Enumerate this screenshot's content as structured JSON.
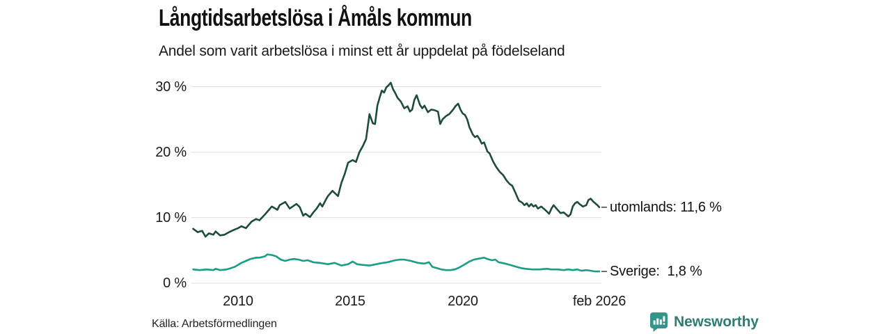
{
  "header": {
    "title": "Långtidsarbetslösa i Åmåls kommun",
    "subtitle": "Andel som varit arbetslösa i minst ett år uppdelat på födelseland"
  },
  "footer": {
    "source": "Källa: Arbetsförmedlingen",
    "brand": "Newsworthy",
    "brand_icon": "newsworthy-pin-barchart-icon"
  },
  "colors": {
    "series_utomlands": "#1d4b3c",
    "series_sverige": "#1a9c86",
    "grid": "#dcdcdc",
    "connector_dash": "#4a4a4a",
    "brand_text": "#2d7d74",
    "brand_icon_bg": "#33948a"
  },
  "chart_data": {
    "type": "line",
    "title": "Långtidsarbetslösa i Åmåls kommun",
    "subtitle": "Andel som varit arbetslösa i minst ett år uppdelat på födelseland",
    "source": "Källa: Arbetsförmedlingen",
    "grid": "horizontal-only",
    "legend_position": "line-end-labels",
    "xlim": [
      2007.9,
      2026.3
    ],
    "ylim": [
      0,
      31.6
    ],
    "x_ticks": [
      {
        "label": "2010",
        "year": 2010
      },
      {
        "label": "2015",
        "year": 2015
      },
      {
        "label": "2020",
        "year": 2020
      },
      {
        "label": "feb 2026",
        "year": 2026.08
      }
    ],
    "y_ticks": [
      {
        "label": "0 %",
        "value": 0
      },
      {
        "label": "10 %",
        "value": 10
      },
      {
        "label": "20 %",
        "value": 20
      },
      {
        "label": "30 %",
        "value": 30
      }
    ],
    "series": [
      {
        "name": "utomlands",
        "end_label": "utomlands: 11,6 %",
        "end_value": 11.6,
        "color": "#1d4b3c",
        "points": [
          [
            2008.0,
            8.3
          ],
          [
            2008.2,
            7.8
          ],
          [
            2008.4,
            8.0
          ],
          [
            2008.55,
            7.1
          ],
          [
            2008.7,
            7.6
          ],
          [
            2008.9,
            7.4
          ],
          [
            2009.0,
            7.9
          ],
          [
            2009.2,
            7.3
          ],
          [
            2009.4,
            7.4
          ],
          [
            2009.6,
            7.8
          ],
          [
            2009.85,
            8.2
          ],
          [
            2010.0,
            8.4
          ],
          [
            2010.15,
            8.7
          ],
          [
            2010.35,
            8.4
          ],
          [
            2010.6,
            9.4
          ],
          [
            2010.8,
            9.8
          ],
          [
            2010.95,
            9.6
          ],
          [
            2011.2,
            10.5
          ],
          [
            2011.5,
            11.7
          ],
          [
            2011.75,
            11.2
          ],
          [
            2011.85,
            11.9
          ],
          [
            2012.1,
            12.4
          ],
          [
            2012.3,
            11.4
          ],
          [
            2012.6,
            12.1
          ],
          [
            2012.75,
            11.6
          ],
          [
            2012.9,
            10.3
          ],
          [
            2013.0,
            10.6
          ],
          [
            2013.2,
            10.1
          ],
          [
            2013.35,
            10.8
          ],
          [
            2013.5,
            11.4
          ],
          [
            2013.65,
            12.2
          ],
          [
            2013.75,
            11.7
          ],
          [
            2013.9,
            12.7
          ],
          [
            2014.0,
            13.3
          ],
          [
            2014.2,
            14.1
          ],
          [
            2014.45,
            13.3
          ],
          [
            2014.6,
            15.3
          ],
          [
            2014.75,
            16.7
          ],
          [
            2014.9,
            18.4
          ],
          [
            2015.1,
            18.8
          ],
          [
            2015.25,
            18.5
          ],
          [
            2015.4,
            20.0
          ],
          [
            2015.55,
            20.9
          ],
          [
            2015.7,
            22.0
          ],
          [
            2015.85,
            25.8
          ],
          [
            2016.0,
            24.4
          ],
          [
            2016.1,
            24.3
          ],
          [
            2016.2,
            27.1
          ],
          [
            2016.3,
            28.3
          ],
          [
            2016.4,
            29.4
          ],
          [
            2016.5,
            29.1
          ],
          [
            2016.6,
            29.9
          ],
          [
            2016.7,
            30.2
          ],
          [
            2016.8,
            30.6
          ],
          [
            2016.9,
            29.6
          ],
          [
            2017.0,
            29.0
          ],
          [
            2017.1,
            28.3
          ],
          [
            2017.25,
            27.7
          ],
          [
            2017.4,
            26.7
          ],
          [
            2017.55,
            27.0
          ],
          [
            2017.65,
            26.2
          ],
          [
            2017.75,
            26.5
          ],
          [
            2017.85,
            28.0
          ],
          [
            2017.95,
            28.7
          ],
          [
            2018.1,
            27.2
          ],
          [
            2018.2,
            26.7
          ],
          [
            2018.3,
            27.1
          ],
          [
            2018.45,
            26.1
          ],
          [
            2018.6,
            26.5
          ],
          [
            2018.75,
            26.4
          ],
          [
            2018.9,
            26.2
          ],
          [
            2019.0,
            24.3
          ],
          [
            2019.1,
            25.0
          ],
          [
            2019.25,
            25.5
          ],
          [
            2019.4,
            25.8
          ],
          [
            2019.55,
            26.4
          ],
          [
            2019.7,
            27.1
          ],
          [
            2019.8,
            27.4
          ],
          [
            2019.9,
            26.5
          ],
          [
            2020.0,
            25.9
          ],
          [
            2020.1,
            25.7
          ],
          [
            2020.2,
            25.0
          ],
          [
            2020.3,
            23.8
          ],
          [
            2020.45,
            22.7
          ],
          [
            2020.55,
            22.3
          ],
          [
            2020.65,
            22.5
          ],
          [
            2020.75,
            22.0
          ],
          [
            2020.85,
            21.3
          ],
          [
            2020.95,
            21.5
          ],
          [
            2021.1,
            20.1
          ],
          [
            2021.2,
            19.8
          ],
          [
            2021.35,
            18.6
          ],
          [
            2021.5,
            17.7
          ],
          [
            2021.65,
            17.0
          ],
          [
            2021.8,
            16.5
          ],
          [
            2021.95,
            15.7
          ],
          [
            2022.1,
            15.1
          ],
          [
            2022.2,
            14.9
          ],
          [
            2022.35,
            13.8
          ],
          [
            2022.5,
            12.6
          ],
          [
            2022.65,
            12.3
          ],
          [
            2022.75,
            11.9
          ],
          [
            2022.85,
            12.2
          ],
          [
            2022.95,
            11.7
          ],
          [
            2023.05,
            12.1
          ],
          [
            2023.15,
            11.7
          ],
          [
            2023.25,
            11.9
          ],
          [
            2023.35,
            11.4
          ],
          [
            2023.5,
            11.7
          ],
          [
            2023.6,
            11.4
          ],
          [
            2023.7,
            11.1
          ],
          [
            2023.85,
            10.6
          ],
          [
            2023.95,
            11.4
          ],
          [
            2024.05,
            11.9
          ],
          [
            2024.2,
            11.3
          ],
          [
            2024.35,
            10.7
          ],
          [
            2024.5,
            10.8
          ],
          [
            2024.6,
            10.5
          ],
          [
            2024.7,
            10.2
          ],
          [
            2024.8,
            10.5
          ],
          [
            2024.9,
            11.7
          ],
          [
            2025.0,
            12.2
          ],
          [
            2025.1,
            12.4
          ],
          [
            2025.2,
            12.1
          ],
          [
            2025.35,
            11.7
          ],
          [
            2025.5,
            11.9
          ],
          [
            2025.6,
            12.7
          ],
          [
            2025.7,
            12.9
          ],
          [
            2025.8,
            12.5
          ],
          [
            2025.9,
            12.2
          ],
          [
            2026.0,
            11.9
          ],
          [
            2026.08,
            11.6
          ]
        ]
      },
      {
        "name": "Sverige",
        "end_label": "Sverige:  1,8 %",
        "end_value": 1.8,
        "color": "#1a9c86",
        "points": [
          [
            2008.0,
            2.1
          ],
          [
            2008.3,
            2.0
          ],
          [
            2008.6,
            2.1
          ],
          [
            2008.9,
            2.0
          ],
          [
            2009.0,
            2.2
          ],
          [
            2009.2,
            2.0
          ],
          [
            2009.5,
            2.1
          ],
          [
            2009.85,
            2.5
          ],
          [
            2010.15,
            3.1
          ],
          [
            2010.35,
            3.4
          ],
          [
            2010.55,
            3.7
          ],
          [
            2010.8,
            3.9
          ],
          [
            2010.95,
            3.9
          ],
          [
            2011.2,
            4.1
          ],
          [
            2011.3,
            4.4
          ],
          [
            2011.5,
            4.3
          ],
          [
            2011.7,
            4.1
          ],
          [
            2011.9,
            3.6
          ],
          [
            2012.1,
            3.4
          ],
          [
            2012.3,
            3.6
          ],
          [
            2012.5,
            3.7
          ],
          [
            2012.7,
            3.6
          ],
          [
            2012.9,
            3.4
          ],
          [
            2013.1,
            3.5
          ],
          [
            2013.35,
            3.2
          ],
          [
            2013.65,
            3.1
          ],
          [
            2014.0,
            2.9
          ],
          [
            2014.3,
            3.1
          ],
          [
            2014.6,
            2.7
          ],
          [
            2014.9,
            2.9
          ],
          [
            2015.1,
            3.3
          ],
          [
            2015.3,
            2.9
          ],
          [
            2015.5,
            2.8
          ],
          [
            2015.85,
            2.7
          ],
          [
            2016.15,
            2.9
          ],
          [
            2016.45,
            3.1
          ],
          [
            2016.65,
            3.2
          ],
          [
            2017.0,
            3.5
          ],
          [
            2017.2,
            3.6
          ],
          [
            2017.4,
            3.6
          ],
          [
            2017.7,
            3.4
          ],
          [
            2018.0,
            3.1
          ],
          [
            2018.3,
            3.0
          ],
          [
            2018.5,
            3.2
          ],
          [
            2018.65,
            2.5
          ],
          [
            2018.85,
            2.3
          ],
          [
            2019.05,
            2.1
          ],
          [
            2019.25,
            2.0
          ],
          [
            2019.45,
            2.0
          ],
          [
            2019.65,
            2.1
          ],
          [
            2019.85,
            2.4
          ],
          [
            2020.1,
            2.9
          ],
          [
            2020.3,
            3.3
          ],
          [
            2020.5,
            3.6
          ],
          [
            2020.8,
            3.8
          ],
          [
            2020.95,
            3.9
          ],
          [
            2021.1,
            3.7
          ],
          [
            2021.3,
            3.5
          ],
          [
            2021.45,
            3.6
          ],
          [
            2021.6,
            3.2
          ],
          [
            2021.75,
            3.1
          ],
          [
            2022.0,
            2.9
          ],
          [
            2022.2,
            2.7
          ],
          [
            2022.4,
            2.5
          ],
          [
            2022.6,
            2.3
          ],
          [
            2022.8,
            2.2
          ],
          [
            2023.1,
            2.1
          ],
          [
            2023.4,
            2.1
          ],
          [
            2023.75,
            2.2
          ],
          [
            2023.95,
            2.1
          ],
          [
            2024.25,
            2.1
          ],
          [
            2024.5,
            2.0
          ],
          [
            2024.7,
            2.1
          ],
          [
            2024.9,
            2.0
          ],
          [
            2025.1,
            2.1
          ],
          [
            2025.3,
            1.9
          ],
          [
            2025.5,
            2.0
          ],
          [
            2025.7,
            1.9
          ],
          [
            2025.9,
            1.8
          ],
          [
            2026.08,
            1.8
          ]
        ]
      }
    ]
  }
}
